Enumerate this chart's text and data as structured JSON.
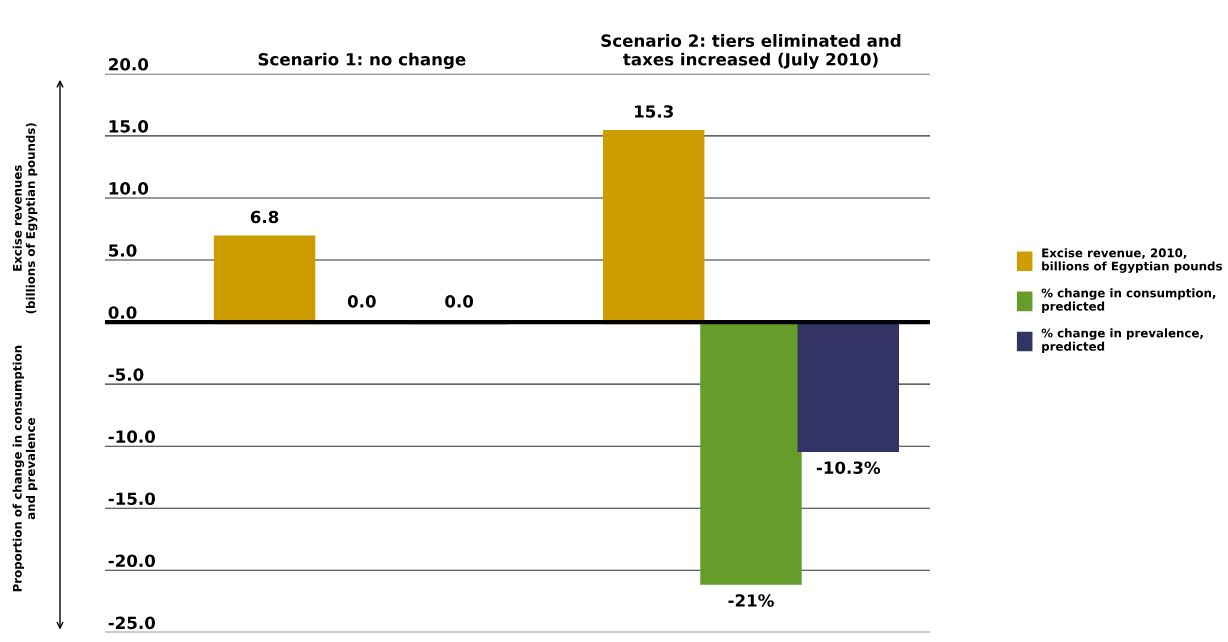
{
  "chart_data": {
    "type": "bar",
    "categories": [
      "Scenario 1: no change",
      "Scenario 2: tiers eliminated and\ntaxes increased (July 2010)"
    ],
    "annotations": [
      "Excise revenues\n(billions of Egyptian pounds)",
      "Proportion of change in consumption\nand prevalence"
    ],
    "series": [
      {
        "name": "Excise revenue, 2010,\nbillions of Egyptian pounds",
        "color": "#cc9c00",
        "values": [
          6.8,
          15.3
        ],
        "value_labels": [
          "6.8",
          "15.3"
        ]
      },
      {
        "name": "% change in consumption,\npredicted",
        "color": "#669c2a",
        "values": [
          0.0,
          -21
        ],
        "value_labels": [
          "0.0",
          "-21%"
        ]
      },
      {
        "name": "% change in prevalence,\npredicted",
        "color": "#333366",
        "values": [
          0.0,
          -10.3
        ],
        "value_labels": [
          "0.0",
          "-10.3%"
        ]
      }
    ],
    "ylim": [
      -25,
      20
    ],
    "yticks": [
      {
        "value": 20,
        "label": "20.0"
      },
      {
        "value": 15,
        "label": "15.0"
      },
      {
        "value": 10,
        "label": "10.0"
      },
      {
        "value": 5,
        "label": "5.0"
      },
      {
        "value": 0,
        "label": "0.0"
      },
      {
        "value": -5,
        "label": "-5.0"
      },
      {
        "value": -10,
        "label": "-10.0"
      },
      {
        "value": -15,
        "label": "-15.0"
      },
      {
        "value": -20,
        "label": "-20.0"
      },
      {
        "value": -25,
        "label": "-25.0"
      }
    ],
    "grid": "y",
    "legend": "right",
    "ref_lines": [
      {
        "axis": "y",
        "value": 0,
        "color": "#000000"
      }
    ]
  }
}
